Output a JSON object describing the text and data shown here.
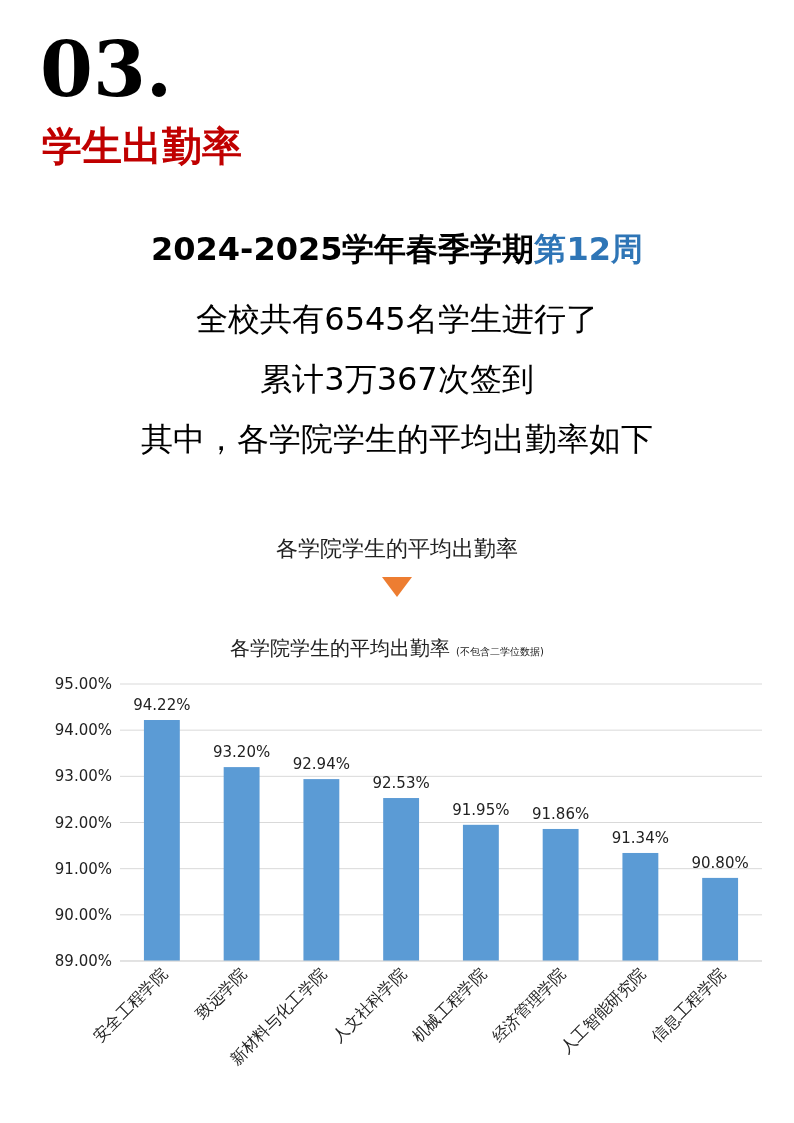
{
  "chart_data": {
    "type": "bar",
    "title": "各学院学生的平均出勤率",
    "subtitle": "(不包含二学位数据)",
    "annotations": [
      "03.",
      "学生出勤率",
      "2024-2025学年春季学期",
      "第12周",
      "全校共有6545名学生进行了",
      "累计3万367次签到",
      "其中，各学院学生的平均出勤率如下",
      "各学院学生的平均出勤率"
    ],
    "categories": [
      "安全工程学院",
      "致远学院",
      "新材料与化工学院",
      "人文社科学院",
      "机械工程学院",
      "经济管理学院",
      "人工智能研究院",
      "信息工程学院"
    ],
    "values": [
      94.22,
      93.2,
      92.94,
      92.53,
      91.95,
      91.86,
      91.34,
      90.8
    ],
    "value_labels": [
      "94.22%",
      "93.20%",
      "92.94%",
      "92.53%",
      "91.95%",
      "91.86%",
      "91.34%",
      "90.80%"
    ],
    "color": "#5b9bd5",
    "ylim": [
      89,
      95
    ],
    "yticks": [
      {
        "value": 89,
        "label": "89.00%"
      },
      {
        "value": 90,
        "label": "90.00%"
      },
      {
        "value": 91,
        "label": "91.00%"
      },
      {
        "value": 92,
        "label": "92.00%"
      },
      {
        "value": 93,
        "label": "93.00%"
      },
      {
        "value": 94,
        "label": "94.00%"
      },
      {
        "value": 95,
        "label": "95.00%"
      }
    ],
    "grid": "y"
  }
}
